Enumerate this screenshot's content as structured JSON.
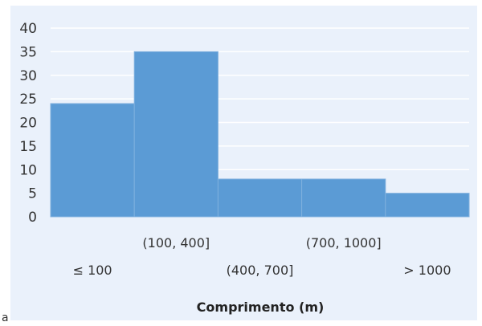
{
  "panel_label": "a",
  "chart_data": {
    "type": "bar",
    "categories": [
      "≤ 100",
      "(100, 400]",
      "(400, 700]",
      "(700, 1000]",
      "> 1000"
    ],
    "values": [
      24,
      35,
      8,
      8,
      5
    ],
    "title": "",
    "xlabel": "Comprimento (m)",
    "ylabel": "",
    "ylim": [
      0,
      40
    ],
    "yticks": [
      0,
      5,
      10,
      15,
      20,
      25,
      30,
      35,
      40
    ],
    "grid": true,
    "bar_color": "#5b9bd5",
    "bar_border_color": "#7fb0de",
    "background_color": "#eaf1fb",
    "gridline_color": "#ffffff"
  }
}
